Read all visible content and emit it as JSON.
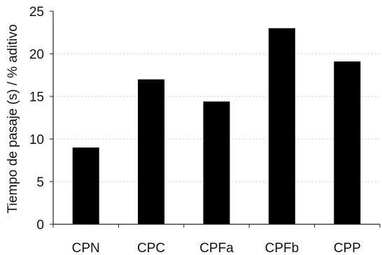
{
  "chart_data": {
    "type": "bar",
    "title": "",
    "xlabel": "",
    "ylabel": "Tiempo de pasaje (s) / % aditivo",
    "categories": [
      "CPN",
      "CPC",
      "CPFa",
      "CPFb",
      "CPP"
    ],
    "values": [
      9.0,
      17.0,
      14.4,
      23.0,
      19.1
    ],
    "ylim": [
      0,
      25
    ],
    "yticks": [
      "0",
      "5",
      "10",
      "15",
      "20",
      "25"
    ],
    "grid": true,
    "bar_color": "#000000",
    "grid_color": "#c8c8c8",
    "axis_color": "#222222"
  }
}
